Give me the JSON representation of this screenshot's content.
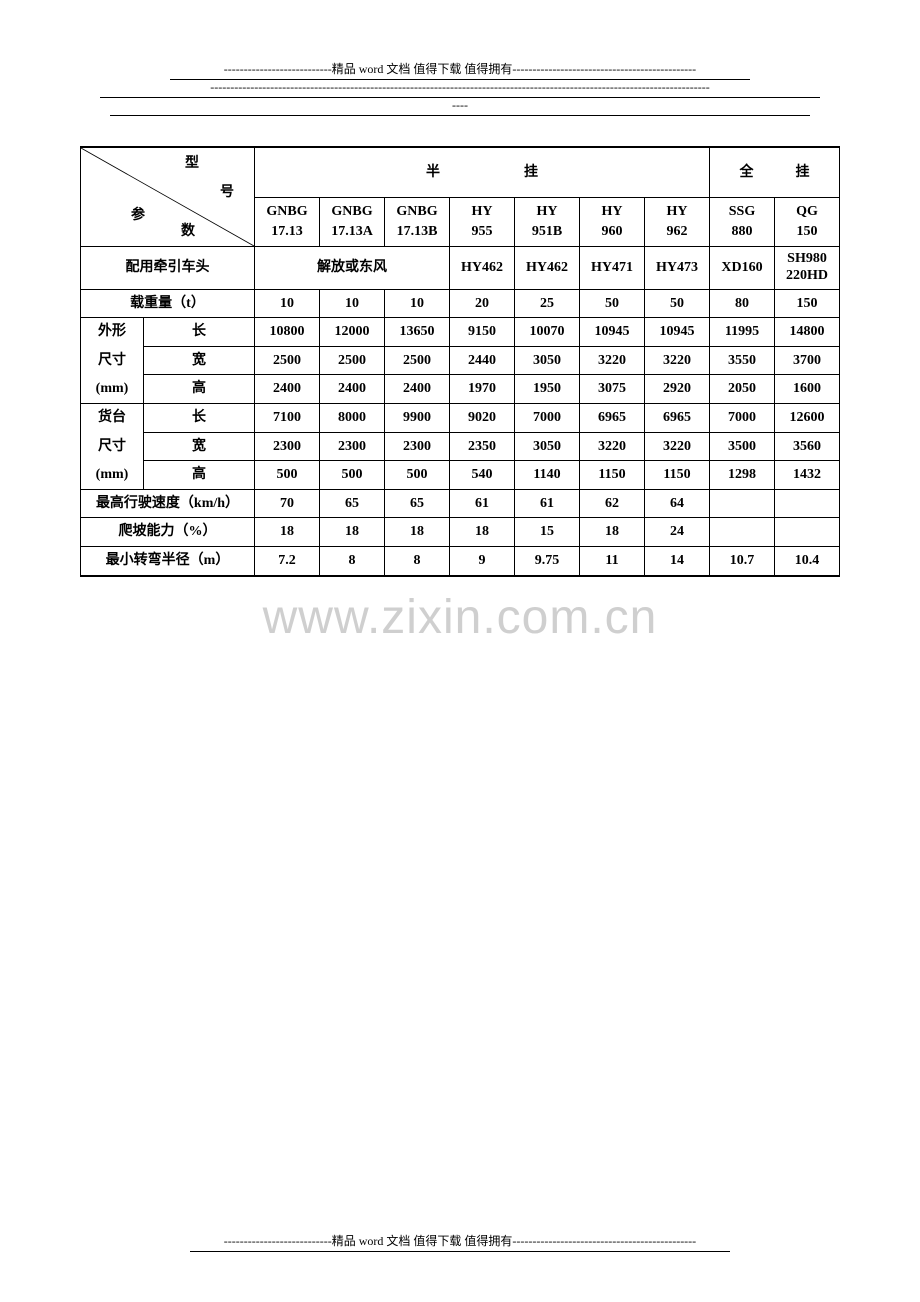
{
  "header": {
    "line1": "---------------------------精品 word 文档  值得下载  值得拥有----------------------------------------------",
    "line2": "-----------------------------------------------------------------------------------------------------------------------------",
    "line3": "----"
  },
  "footer": {
    "line": "---------------------------精品 word 文档  值得下载  值得拥有----------------------------------------------"
  },
  "watermark": "www.zixin.com.cn",
  "corner": {
    "top": "型",
    "mid": "号",
    "bot_left": "参",
    "bot_right": "数"
  },
  "group_headers": {
    "semi": "半　　　　　　挂",
    "full": "全　　　挂"
  },
  "models": [
    {
      "l1": "GNBG",
      "l2": "17.13"
    },
    {
      "l1": "GNBG",
      "l2": "17.13A"
    },
    {
      "l1": "GNBG",
      "l2": "17.13B"
    },
    {
      "l1": "HY",
      "l2": "955"
    },
    {
      "l1": "HY",
      "l2": "951B"
    },
    {
      "l1": "HY",
      "l2": "960"
    },
    {
      "l1": "HY",
      "l2": "962"
    },
    {
      "l1": "SSG",
      "l2": "880"
    },
    {
      "l1": "QG",
      "l2": "150"
    }
  ],
  "rows": {
    "tractor": {
      "label": "配用牵引车头",
      "merged3": "解放或东风",
      "cells": [
        "HY462",
        "HY462",
        "HY471",
        "HY473",
        "XD160",
        "SH980\n220HD"
      ]
    },
    "load": {
      "label": "载重量（t）",
      "cells": [
        "10",
        "10",
        "10",
        "20",
        "25",
        "50",
        "50",
        "80",
        "150"
      ]
    },
    "outer": {
      "group1": "外形",
      "group2": "尺寸",
      "group3": "(mm)",
      "sub": [
        "长",
        "宽",
        "高"
      ],
      "r1": [
        "10800",
        "12000",
        "13650",
        "9150",
        "10070",
        "10945",
        "10945",
        "11995",
        "14800"
      ],
      "r2": [
        "2500",
        "2500",
        "2500",
        "2440",
        "3050",
        "3220",
        "3220",
        "3550",
        "3700"
      ],
      "r3": [
        "2400",
        "2400",
        "2400",
        "1970",
        "1950",
        "3075",
        "2920",
        "2050",
        "1600"
      ]
    },
    "cargo": {
      "group1": "货台",
      "group2": "尺寸",
      "group3": "(mm)",
      "sub": [
        "长",
        "宽",
        "高"
      ],
      "r1": [
        "7100",
        "8000",
        "9900",
        "9020",
        "7000",
        "6965",
        "6965",
        "7000",
        "12600"
      ],
      "r2": [
        "2300",
        "2300",
        "2300",
        "2350",
        "3050",
        "3220",
        "3220",
        "3500",
        "3560"
      ],
      "r3": [
        "500",
        "500",
        "500",
        "540",
        "1140",
        "1150",
        "1150",
        "1298",
        "1432"
      ]
    },
    "speed": {
      "label": "最高行驶速度（km/h）",
      "cells": [
        "70",
        "65",
        "65",
        "61",
        "61",
        "62",
        "64",
        "",
        ""
      ]
    },
    "climb": {
      "label": "爬坡能力（%）",
      "cells": [
        "18",
        "18",
        "18",
        "18",
        "15",
        "18",
        "24",
        "",
        ""
      ]
    },
    "turn": {
      "label": "最小转弯半径（m）",
      "cells": [
        "7.2",
        "8",
        "8",
        "9",
        "9.75",
        "11",
        "14",
        "10.7",
        "10.4"
      ]
    }
  }
}
